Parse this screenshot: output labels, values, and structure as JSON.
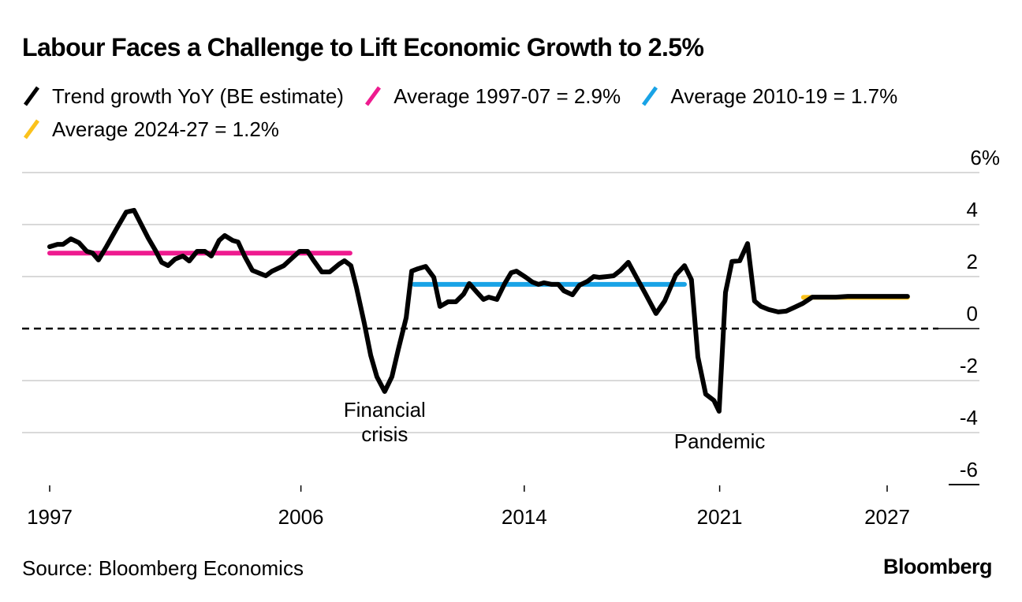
{
  "chart_data": {
    "type": "line",
    "title": "Labour Faces a Challenge to Lift Economic Growth to 2.5%",
    "xlabel": "",
    "ylabel": "%",
    "ylim": [
      -6,
      6
    ],
    "xlim": [
      1997,
      2029.5
    ],
    "grid": true,
    "legend_placement": "top-left",
    "x_ticks": [
      {
        "value": 1997,
        "label": "1997"
      },
      {
        "value": 2006,
        "label": "2006"
      },
      {
        "value": 2014,
        "label": "2014"
      },
      {
        "value": 2021,
        "label": "2021"
      },
      {
        "value": 2027,
        "label": "2027"
      }
    ],
    "y_ticks": [
      {
        "value": 6,
        "label": "6%"
      },
      {
        "value": 4,
        "label": "4"
      },
      {
        "value": 2,
        "label": "2"
      },
      {
        "value": 0,
        "label": "0"
      },
      {
        "value": -2,
        "label": "-2"
      },
      {
        "value": -4,
        "label": "-4"
      },
      {
        "value": -6,
        "label": "-6"
      }
    ],
    "series": [
      {
        "name": "Trend growth YoY (BE estimate)",
        "color": "#000000",
        "kind": "line",
        "x": [
          1997.0,
          1997.28,
          1997.48,
          1997.76,
          1998.05,
          1998.33,
          1998.53,
          1998.75,
          1999.03,
          1999.4,
          1999.74,
          2000.02,
          2000.53,
          2000.79,
          2001.01,
          2001.24,
          2001.49,
          2001.77,
          2002.0,
          2002.28,
          2002.56,
          2002.79,
          2003.07,
          2003.27,
          2003.55,
          2003.75,
          2003.98,
          2004.26,
          2004.74,
          2004.97,
          2005.39,
          2005.67,
          2005.95,
          2006.24,
          2006.44,
          2006.75,
          2007.03,
          2007.37,
          2007.56,
          2007.79,
          2007.99,
          2008.27,
          2008.5,
          2008.72,
          2009.0,
          2009.26,
          2009.49,
          2009.77,
          2009.97,
          2010.19,
          2010.47,
          2010.76,
          2010.98,
          2011.27,
          2011.55,
          2011.83,
          2012.03,
          2012.31,
          2012.54,
          2012.73,
          2013.02,
          2013.3,
          2013.53,
          2013.72,
          2014.06,
          2014.29,
          2014.51,
          2014.71,
          2014.99,
          2015.22,
          2015.42,
          2015.73,
          2015.98,
          2016.27,
          2016.49,
          2016.69,
          2016.97,
          2017.2,
          2017.45,
          2017.73,
          2018.02,
          2018.33,
          2018.72,
          2019.03,
          2019.43,
          2019.74,
          2019.99,
          2020.22,
          2020.5,
          2020.79,
          2020.98,
          2021.21,
          2021.44,
          2021.72,
          2022.0,
          2022.25,
          2022.48,
          2022.76,
          2023.1,
          2023.38,
          2023.69,
          2023.98,
          2024.32,
          2024.74,
          2025.16,
          2025.59,
          2026.29,
          2027.0,
          2027.73
        ],
        "values": [
          3.15,
          3.24,
          3.24,
          3.45,
          3.3,
          2.97,
          2.91,
          2.64,
          3.15,
          3.85,
          4.48,
          4.55,
          3.48,
          3.0,
          2.55,
          2.42,
          2.67,
          2.79,
          2.6,
          2.97,
          2.97,
          2.79,
          3.39,
          3.58,
          3.39,
          3.33,
          2.79,
          2.24,
          2.03,
          2.21,
          2.42,
          2.7,
          2.97,
          2.97,
          2.64,
          2.18,
          2.18,
          2.48,
          2.61,
          2.42,
          1.58,
          0.2,
          -1.03,
          -1.85,
          -2.42,
          -1.85,
          -0.8,
          0.42,
          2.21,
          2.3,
          2.39,
          1.97,
          0.85,
          1.03,
          1.03,
          1.33,
          1.73,
          1.39,
          1.12,
          1.21,
          1.12,
          1.73,
          2.15,
          2.21,
          1.97,
          1.79,
          1.7,
          1.76,
          1.7,
          1.7,
          1.45,
          1.3,
          1.67,
          1.82,
          2.0,
          1.97,
          2.0,
          2.03,
          2.24,
          2.55,
          1.97,
          1.36,
          0.58,
          1.06,
          2.06,
          2.42,
          1.88,
          -1.09,
          -2.52,
          -2.76,
          -3.18,
          1.39,
          2.58,
          2.61,
          3.27,
          1.06,
          0.85,
          0.73,
          0.64,
          0.67,
          0.82,
          0.97,
          1.21,
          1.21,
          1.21,
          1.24,
          1.24,
          1.24,
          1.24
        ]
      },
      {
        "name": "Average 1997-07 = 2.9%",
        "color": "#ee1b8f",
        "kind": "hline",
        "value": 2.9,
        "x_range": [
          1997.0,
          2007.76
        ]
      },
      {
        "name": "Average 2010-19 = 1.7%",
        "color": "#19a3e6",
        "kind": "hline",
        "value": 1.7,
        "x_range": [
          2010.05,
          2019.74
        ]
      },
      {
        "name": "Average 2024-27 = 1.2%",
        "color": "#fbc21c",
        "kind": "hline",
        "value": 1.2,
        "x_range": [
          2024.0,
          2027.73
        ]
      }
    ],
    "zero_line": {
      "style": "dashed",
      "value": 0
    },
    "annotations": [
      {
        "text_lines": [
          "Financial",
          "crisis"
        ],
        "x": 2009.0,
        "y": -3.4
      },
      {
        "text_lines": [
          "Pandemic"
        ],
        "x": 2021.0,
        "y": -4.6
      }
    ]
  },
  "legend": [
    {
      "label": "Trend growth YoY (BE estimate)",
      "color": "#000000"
    },
    {
      "label": "Average 1997-07 = 2.9%",
      "color": "#ee1b8f"
    },
    {
      "label": "Average 2010-19 = 1.7%",
      "color": "#19a3e6"
    },
    {
      "label": "Average 2024-27 = 1.2%",
      "color": "#fbc21c"
    }
  ],
  "footer": {
    "source": "Source: Bloomberg Economics",
    "brand": "Bloomberg"
  },
  "colors": {
    "gridline": "#d9d9d9",
    "text": "#000000"
  }
}
